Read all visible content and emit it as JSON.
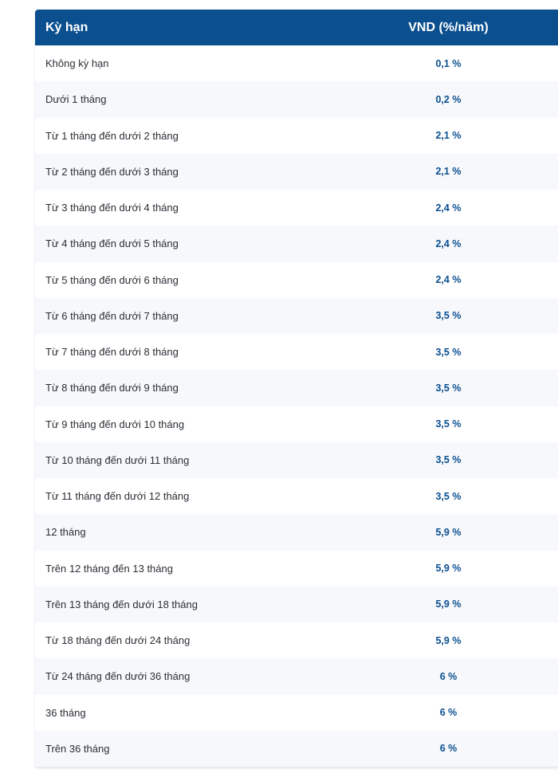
{
  "table": {
    "headers": {
      "term": "Kỳ hạn",
      "rate": "VND (%/năm)"
    },
    "accent_color": "#0b4f8f",
    "rows": [
      {
        "term": "Không kỳ hạn",
        "rate": "0,1 %"
      },
      {
        "term": "Dưới 1 tháng",
        "rate": "0,2 %"
      },
      {
        "term": "Từ 1 tháng đến dưới 2 tháng",
        "rate": "2,1 %"
      },
      {
        "term": "Từ 2 tháng đến dưới 3 tháng",
        "rate": "2,1 %"
      },
      {
        "term": "Từ 3 tháng đến dưới 4 tháng",
        "rate": "2,4 %"
      },
      {
        "term": "Từ 4 tháng đến dưới 5 tháng",
        "rate": "2,4 %"
      },
      {
        "term": "Từ 5 tháng đến dưới 6 tháng",
        "rate": "2,4 %"
      },
      {
        "term": "Từ 6 tháng đến dưới 7 tháng",
        "rate": "3,5 %"
      },
      {
        "term": "Từ 7 tháng đến dưới 8 tháng",
        "rate": "3,5 %"
      },
      {
        "term": "Từ 8 tháng đến dưới 9 tháng",
        "rate": "3,5 %"
      },
      {
        "term": "Từ 9 tháng đến dưới 10 tháng",
        "rate": "3,5 %"
      },
      {
        "term": "Từ 10 tháng đến dưới 11 tháng",
        "rate": "3,5 %"
      },
      {
        "term": "Từ 11 tháng đến dưới 12 tháng",
        "rate": "3,5 %"
      },
      {
        "term": "12 tháng",
        "rate": "5,9 %"
      },
      {
        "term": "Trên 12 tháng đến 13 tháng",
        "rate": "5,9 %"
      },
      {
        "term": "Trên 13 tháng đến dưới 18 tháng",
        "rate": "5,9 %"
      },
      {
        "term": "Từ 18 tháng đến dưới 24 tháng",
        "rate": "5,9 %"
      },
      {
        "term": "Từ 24 tháng đến dưới 36 tháng",
        "rate": "6 %"
      },
      {
        "term": "36 tháng",
        "rate": "6 %"
      },
      {
        "term": "Trên 36 tháng",
        "rate": "6 %"
      }
    ]
  }
}
